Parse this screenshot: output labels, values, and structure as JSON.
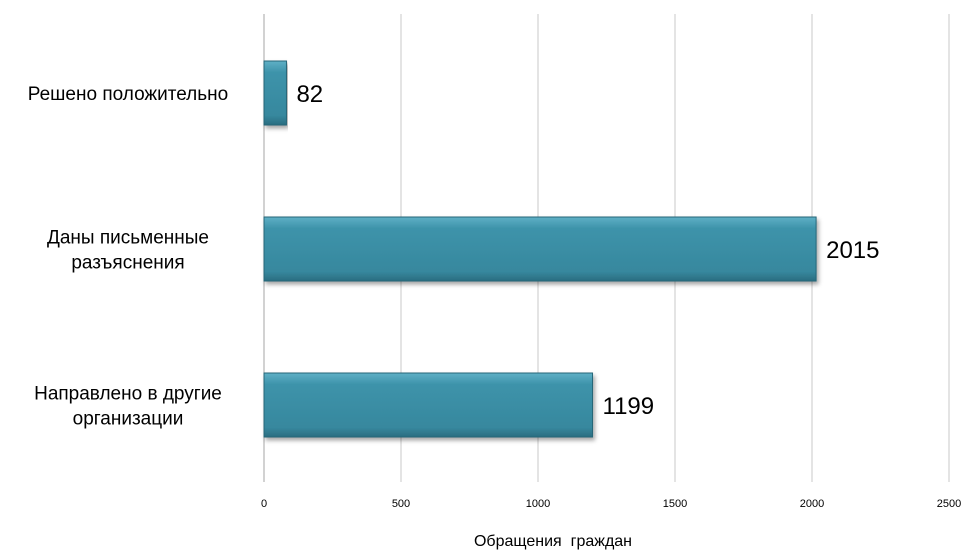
{
  "chart_data": {
    "type": "bar",
    "orientation": "horizontal",
    "categories": [
      [
        "Решено положительно"
      ],
      [
        "Даны письменные",
        "разъяснения"
      ],
      [
        "Направлено в другие",
        "организации"
      ]
    ],
    "values": [
      82,
      2015,
      1199
    ],
    "data_labels": [
      "82",
      "2015",
      "1199"
    ],
    "xlabel": "Обращения  граждан",
    "ylabel": "",
    "xlim": [
      0,
      2500
    ],
    "x_ticks": [
      0,
      500,
      1000,
      1500,
      2000,
      2500
    ],
    "grid": "vertical",
    "legend": "none",
    "bar_color": "#3a8fa6",
    "bar_edge_color": "#256678"
  }
}
